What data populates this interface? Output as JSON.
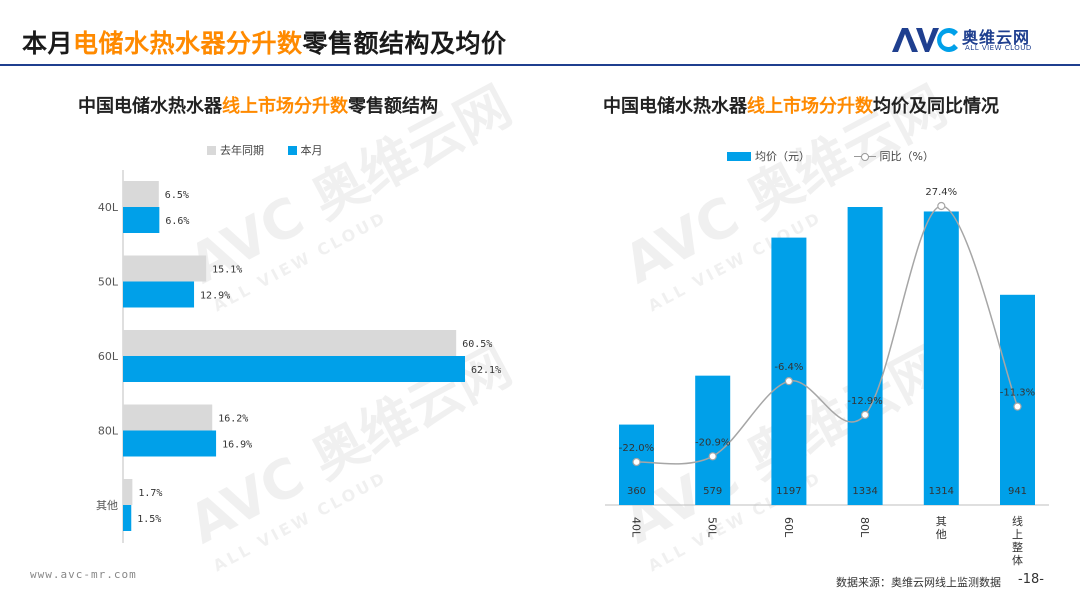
{
  "header": {
    "title_pre": "本月",
    "title_highlight": "电储水热水器分升数",
    "title_post": "零售额结构及均价",
    "logo_text": "奥维云网",
    "logo_sub": "ALL VIEW CLOUD",
    "logo_mark": "AVC"
  },
  "watermark": {
    "brand": "AVC 奥维云网",
    "sub": "ALL VIEW CLOUD"
  },
  "chart_data": [
    {
      "type": "bar",
      "orientation": "horizontal",
      "title_pre": "中国电储水热水器",
      "title_highlight": "线上市场分升数",
      "title_post": "零售额结构",
      "categories": [
        "40L",
        "50L",
        "60L",
        "80L",
        "其他"
      ],
      "series": [
        {
          "name": "去年同期",
          "values": [
            6.5,
            15.1,
            60.5,
            16.2,
            1.7
          ],
          "labels": [
            "6.5%",
            "15.1%",
            "60.5%",
            "16.2%",
            "1.7%"
          ],
          "color": "#d9d9d9"
        },
        {
          "name": "本月",
          "values": [
            6.6,
            12.9,
            62.1,
            16.9,
            1.5
          ],
          "labels": [
            "6.6%",
            "12.9%",
            "62.1%",
            "16.9%",
            "1.5%"
          ],
          "color": "#00a0e9"
        }
      ],
      "xlim": [
        0,
        62.1
      ],
      "legend_position": "top"
    },
    {
      "type": "bar",
      "combo": "bar+line",
      "title_pre": "中国电储水热水器",
      "title_highlight": "线上市场分升数",
      "title_post": "均价及同比情况",
      "categories": [
        "40L",
        "50L",
        "60L",
        "80L",
        "其他",
        "线上整体"
      ],
      "series": [
        {
          "name": "均价（元）",
          "type": "bar",
          "values": [
            360,
            579,
            1197,
            1334,
            1314,
            941
          ],
          "color": "#00a0e9"
        },
        {
          "name": "同比（%）",
          "type": "line",
          "values": [
            -22.0,
            -20.9,
            -6.4,
            -12.9,
            27.4,
            -11.3
          ],
          "labels": [
            "-22.0%",
            "-20.9%",
            "-6.4%",
            "-12.9%",
            "27.4%",
            "-11.3%"
          ],
          "color": "#a6a6a6"
        }
      ],
      "ylim": [
        0,
        1334
      ],
      "line_ylim": [
        -22.0,
        27.4
      ],
      "legend_position": "top"
    }
  ],
  "footer": {
    "url": "www.avc-mr.com",
    "source": "数据来源：奥维云网线上监测数据",
    "page": "-18-"
  }
}
